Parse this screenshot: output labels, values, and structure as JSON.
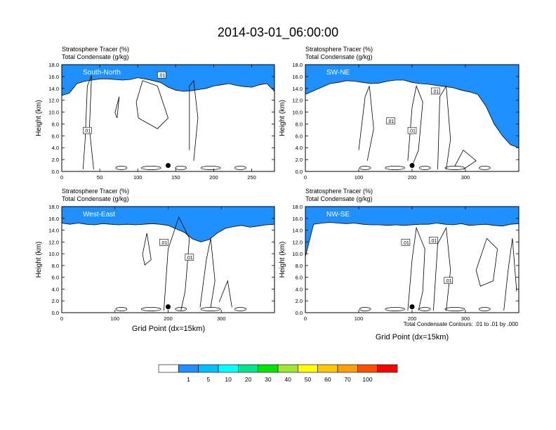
{
  "figure": {
    "title": "2014-03-01_06:00:00",
    "footnote": "Total Condensate Contours: .01 to .01 by .000",
    "xlabel": "Grid Point (dx=15km)"
  },
  "colorbar": {
    "labels": [
      "1",
      "5",
      "10",
      "20",
      "30",
      "40",
      "50",
      "60",
      "70",
      "100"
    ],
    "colors": [
      "#ffffff",
      "#1e90ff",
      "#00bfff",
      "#00ffff",
      "#00e58c",
      "#00e600",
      "#a0e632",
      "#ffff00",
      "#ffc800",
      "#ffa000",
      "#ff5000",
      "#ff0000"
    ]
  },
  "chart_data": [
    {
      "type": "heatmap",
      "panel": "South-North",
      "title_left_1": "Stratosphere Tracer   (%)",
      "title_left_2": "Total Condensate   (g/kg)",
      "ylabel": "Height (km)",
      "xlim": [
        0,
        280
      ],
      "ylim": [
        0,
        18
      ],
      "xticks": [
        0,
        50,
        100,
        150,
        200,
        250
      ],
      "yticks": [
        "0.0",
        "2.0",
        "4.0",
        "6.0",
        "8.0",
        "10.0",
        "12.0",
        "14.0",
        "16.0",
        "18.0"
      ],
      "tropopause_km": [
        12.8,
        13.2,
        14.8,
        15.2,
        15.4,
        15.6,
        15.6,
        15.5,
        15.4,
        15.5,
        15.8,
        15.6,
        15.3,
        15.0,
        14.2,
        13.7,
        13.5,
        13.6,
        13.8,
        14.0,
        14.4,
        14.6,
        14.8,
        14.5,
        14.3,
        14.2,
        14.6,
        14.8,
        13.5
      ],
      "contour_labels": [
        ".01",
        ".01"
      ],
      "marker": {
        "x": 140,
        "y_km": 1.0
      }
    },
    {
      "type": "heatmap",
      "panel": "SW-NE",
      "title_left_1": "Stratosphere Tracer   (%)",
      "title_left_2": "Total Condensate   (g/kg)",
      "ylabel": "Height (km)",
      "xlim": [
        0,
        400
      ],
      "ylim": [
        0,
        18
      ],
      "xticks": [
        0,
        100,
        200,
        300
      ],
      "yticks": [
        "0.0",
        "2.0",
        "4.0",
        "6.0",
        "8.0",
        "10.0",
        "12.0",
        "14.0",
        "16.0",
        "18.0"
      ],
      "tropopause_km": [
        13.0,
        13.6,
        14.2,
        14.8,
        15.0,
        15.3,
        15.2,
        15.0,
        14.8,
        14.9,
        15.2,
        15.4,
        15.4,
        15.0,
        14.8,
        14.7,
        14.5,
        14.3,
        14.1,
        13.7,
        13.4,
        13.0,
        11.0,
        8.0,
        6.0,
        4.5,
        4.0
      ],
      "contour_labels": [
        ".01",
        ".01",
        ".01"
      ],
      "marker": {
        "x": 200,
        "y_km": 1.0
      }
    },
    {
      "type": "heatmap",
      "panel": "West-East",
      "title_left_1": "Stratosphere Tracer   (%)",
      "title_left_2": "Total Condensate   (g/kg)",
      "ylabel": "Height (km)",
      "xlabel": "Grid Point (dx=15km)",
      "xlim": [
        0,
        400
      ],
      "ylim": [
        0,
        18
      ],
      "xticks": [
        0,
        100,
        200,
        300
      ],
      "yticks": [
        "0.0",
        "2.0",
        "4.0",
        "6.0",
        "8.0",
        "10.0",
        "12.0",
        "14.0",
        "16.0",
        "18.0"
      ],
      "tropopause_km": [
        15.2,
        15.0,
        15.2,
        15.0,
        14.9,
        15.1,
        15.0,
        14.9,
        15.0,
        14.9,
        15.0,
        15.1,
        15.0,
        14.8,
        14.2,
        13.6,
        12.5,
        12.0,
        12.4,
        13.5,
        14.3,
        14.6,
        14.8,
        14.5,
        14.7,
        14.9,
        15.0
      ],
      "contour_labels": [
        ".01",
        ".01"
      ],
      "marker": {
        "x": 200,
        "y_km": 1.0
      }
    },
    {
      "type": "heatmap",
      "panel": "NW-SE",
      "title_left_1": "Stratosphere Tracer   (%)",
      "title_left_2": "Total Condensate   (g/kg)",
      "ylabel": "Height (km)",
      "xlabel": "Grid Point (dx=15km)",
      "xlim": [
        0,
        400
      ],
      "ylim": [
        0,
        18
      ],
      "xticks": [
        0,
        100,
        200,
        300
      ],
      "yticks": [
        "0.0",
        "2.0",
        "4.0",
        "6.0",
        "8.0",
        "10.0",
        "12.0",
        "14.0",
        "16.0",
        "18.0"
      ],
      "tropopause_km": [
        9.5,
        15.0,
        15.2,
        15.3,
        15.2,
        15.1,
        15.2,
        15.0,
        14.9,
        14.9,
        14.8,
        14.9,
        14.8,
        14.9,
        15.0,
        15.0,
        15.2,
        15.0,
        14.9,
        15.1,
        14.8,
        14.9,
        15.0,
        14.8,
        14.7,
        15.0,
        15.1
      ],
      "contour_labels": [
        ".01",
        ".01",
        ".01"
      ],
      "marker": {
        "x": 200,
        "y_km": 1.0
      }
    }
  ]
}
